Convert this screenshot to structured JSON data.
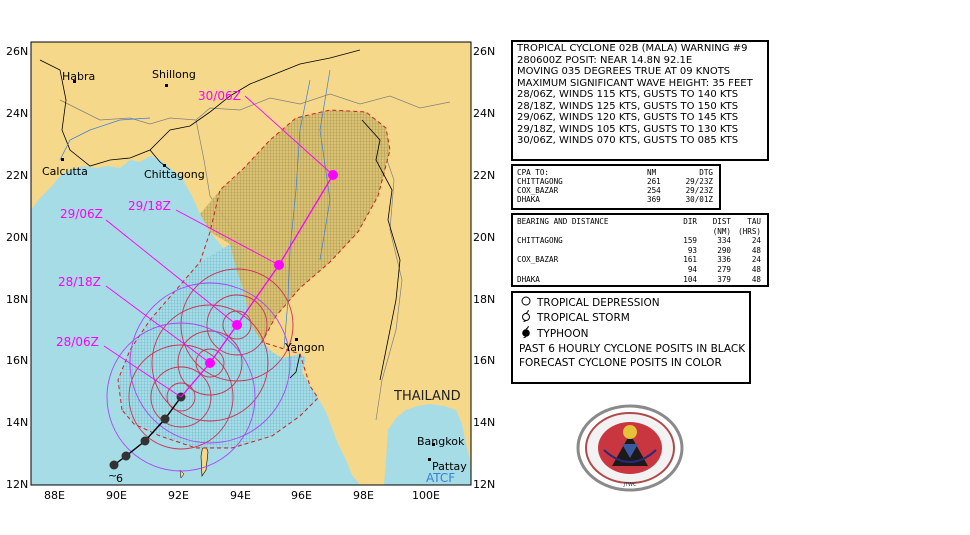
{
  "map": {
    "lat_labels": [
      "26N",
      "24N",
      "22N",
      "20N",
      "18N",
      "16N",
      "14N",
      "12N"
    ],
    "lon_labels": [
      "88E",
      "90E",
      "92E",
      "94E",
      "96E",
      "98E",
      "100E"
    ],
    "places": {
      "habra": "Habra",
      "shillong": "Shillong",
      "calcutta": "Calcutta",
      "chittagong": "Chittagong",
      "yangon": "Yangon",
      "bangkok": "Bangkok",
      "pattaya": "Pattay",
      "thailand": "THAILAND"
    },
    "forecast_labels": [
      "30/06Z",
      "29/18Z",
      "29/06Z",
      "28/18Z",
      "28/06Z"
    ],
    "atcf": "ATCF",
    "colors": {
      "land": "#f5d88a",
      "sea": "#a6dce6",
      "forecast": "#ff00ff",
      "danger_hatch": "#a89a50",
      "track_past": "#000000"
    }
  },
  "warning": {
    "lines": [
      "TROPICAL CYCLONE 02B (MALA) WARNING #9",
      "280600Z POSIT: NEAR 14.8N 92.1E",
      "MOVING 035 DEGREES TRUE AT 09 KNOTS",
      "MAXIMUM SIGNIFICANT WAVE HEIGHT: 35 FEET",
      "28/06Z, WINDS 115 KTS, GUSTS TO 140 KTS",
      "28/18Z, WINDS 125 KTS, GUSTS TO 150 KTS",
      "29/06Z, WINDS 120 KTS, GUSTS TO 145 KTS",
      "29/18Z, WINDS 105 KTS, GUSTS TO 130 KTS",
      "30/06Z, WINDS 070 KTS, GUSTS TO 085 KTS"
    ]
  },
  "cpa": {
    "header": [
      "CPA TO:",
      "NM",
      "DTG"
    ],
    "rows": [
      [
        "CHITTAGONG",
        "261",
        "29/23Z"
      ],
      [
        "COX_BAZAR",
        "254",
        "29/23Z"
      ],
      [
        "DHAKA",
        "369",
        "30/01Z"
      ]
    ]
  },
  "bearing": {
    "header1": [
      "BEARING AND DISTANCE",
      "DIR",
      "DIST",
      "TAU"
    ],
    "header2": [
      "",
      "",
      "(NM)",
      "(HRS)"
    ],
    "rows": [
      [
        "CHITTAGONG",
        "159",
        "334",
        "24"
      ],
      [
        "",
        "93",
        "290",
        "48"
      ],
      [
        "COX_BAZAR",
        "161",
        "336",
        "24"
      ],
      [
        "",
        "94",
        "279",
        "48"
      ],
      [
        "DHAKA",
        "104",
        "379",
        "48"
      ]
    ]
  },
  "legend": {
    "depression": "TROPICAL DEPRESSION",
    "storm": "TROPICAL STORM",
    "typhoon": "TYPHOON",
    "note1": "PAST 6 HOURLY CYCLONE POSITS IN BLACK",
    "note2": "FORECAST CYCLONE POSITS IN COLOR"
  },
  "seal": {
    "text": "NAVAL PACIFIC METEOROLOGY & OCEANOGRAPHY CENTER / JOINT TYPHOON WARNING CENTER"
  }
}
